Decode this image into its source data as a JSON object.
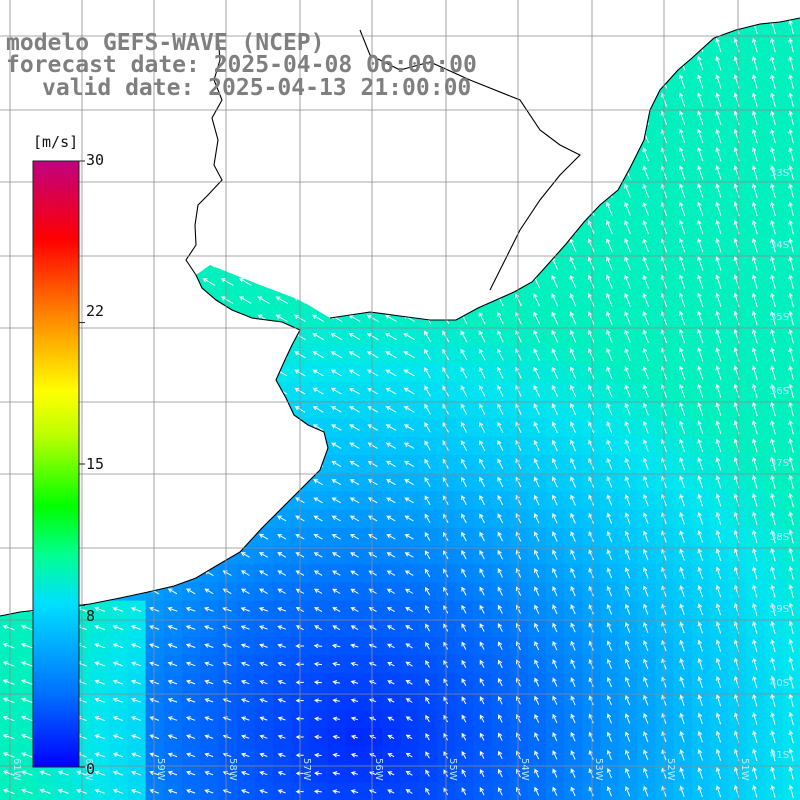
{
  "title": {
    "line1": "modelo GEFS-WAVE (NCEP)",
    "line2": "forecast date: 2025-04-08 06:00:00",
    "line3": "valid date: 2025-04-13 21:00:00"
  },
  "colorbar": {
    "unit": "[m/s]",
    "labels": [
      "30",
      "22",
      "15",
      "8",
      "0"
    ],
    "values": [
      30,
      22,
      15,
      8,
      0
    ],
    "range": [
      0,
      30
    ]
  },
  "grid": {
    "right_lat_labels": [
      "33S",
      "34S",
      "35S",
      "36S",
      "37S",
      "38S",
      "39S",
      "40S",
      "41S"
    ],
    "bottom_lon_labels": [
      "61W",
      "60W",
      "59W",
      "58W",
      "57W",
      "56W",
      "55W",
      "54W",
      "53W",
      "52W",
      "51W"
    ]
  },
  "colors": {
    "land": "#ffffff",
    "coast": "#000000",
    "grid": "#8c8c8c",
    "arrows": "#ffffff",
    "title": "#7f7f7f"
  }
}
